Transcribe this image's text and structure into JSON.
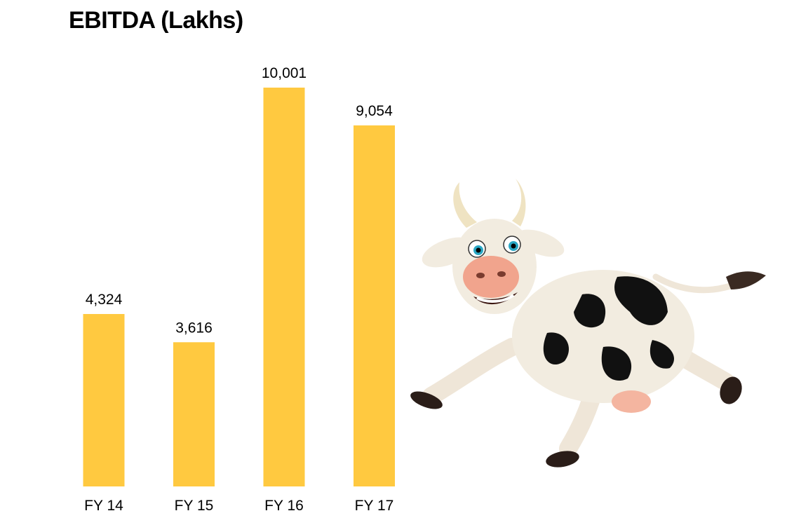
{
  "chart_data": {
    "type": "bar",
    "title": "EBITDA (Lakhs)",
    "categories": [
      "FY 14",
      "FY 15",
      "FY 16",
      "FY 17"
    ],
    "values": [
      4324,
      3616,
      10001,
      9054
    ],
    "value_labels": [
      "4,324",
      "3,616",
      "10,001",
      "9,054"
    ],
    "ylim": [
      0,
      10001
    ],
    "grid": false,
    "bar_color": "#FFC940"
  },
  "illustration": {
    "icon": "cartoon-cow-icon"
  }
}
